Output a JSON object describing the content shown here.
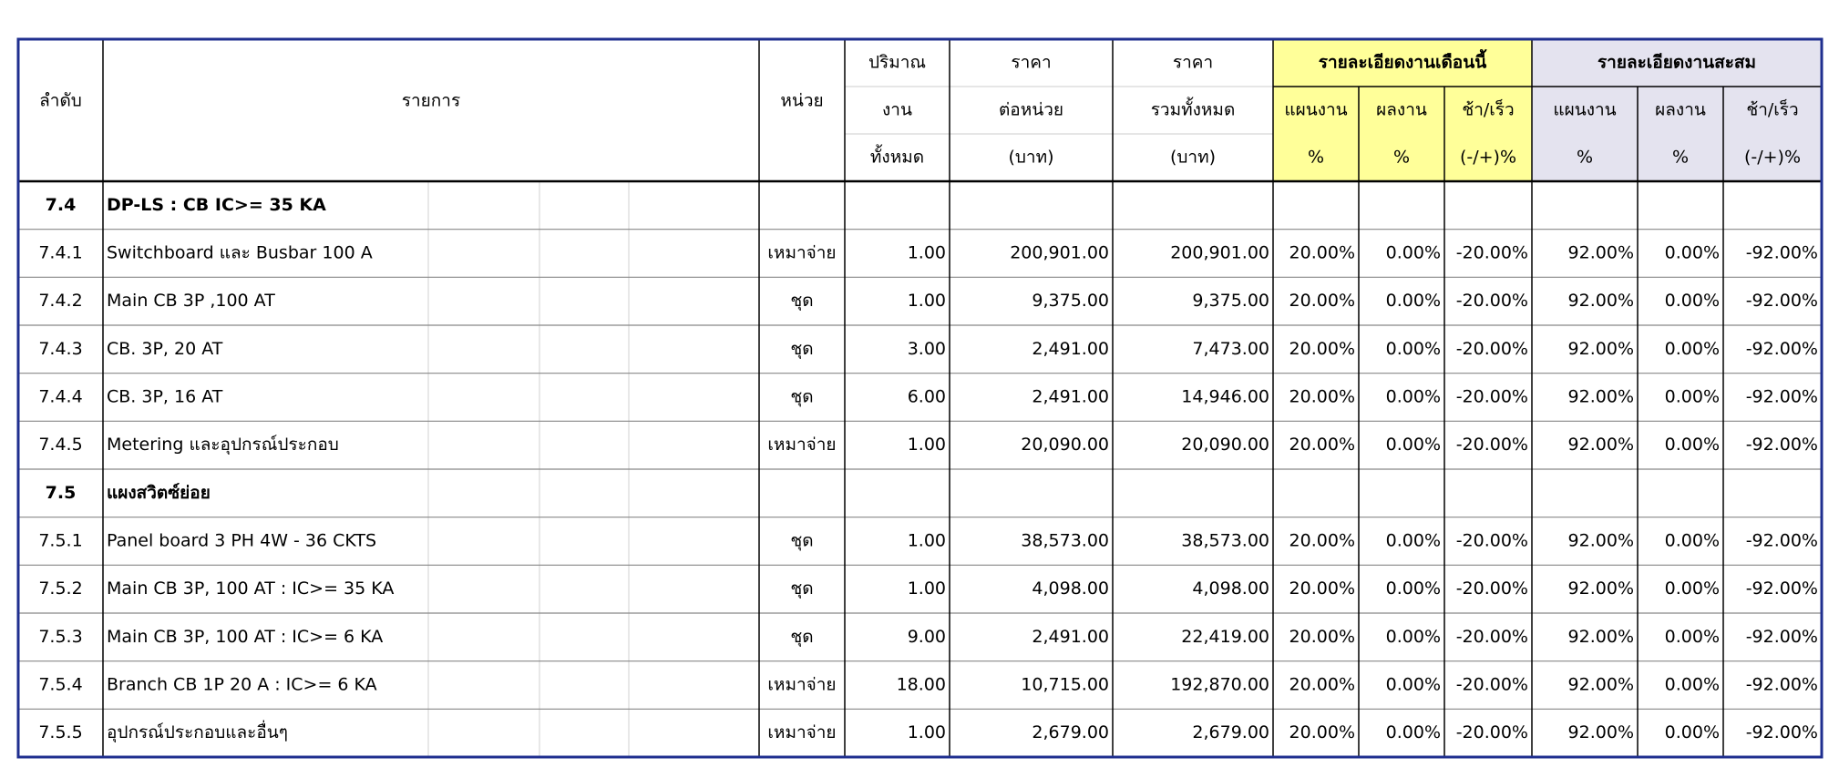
{
  "header": {
    "order": "ลำดับ",
    "item": "รายการ",
    "unit": "หน่วย",
    "qty": [
      "ปริมาณ",
      "งาน",
      "ทั้งหมด"
    ],
    "unit_price": [
      "ราคา",
      "ต่อหน่วย",
      "(บาท)"
    ],
    "total": [
      "ราคา",
      "รวมทั้งหมด",
      "(บาท)"
    ],
    "this_month": {
      "title": "รายละเอียดงานเดือนนี้",
      "cols": [
        [
          "แผนงาน",
          "%"
        ],
        [
          "ผลงาน",
          "%"
        ],
        [
          "ช้า/เร็ว",
          "(-/+)%"
        ]
      ]
    },
    "cumulative": {
      "title": "รายละเอียดงานสะสม",
      "cols": [
        [
          "แผนงาน",
          "%"
        ],
        [
          "ผลงาน",
          "%"
        ],
        [
          "ช้า/เร็ว",
          "(-/+)%"
        ]
      ]
    }
  },
  "rows": [
    [
      "7.4",
      "DP-LS : CB IC>= 35 KA"
    ],
    [
      "7.4.1",
      "Switchboard และ Busbar 100 A",
      "เหมาจ่าย",
      "1.00",
      "200,901.00",
      "200,901.00",
      "20.00%",
      "0.00%",
      "-20.00%",
      "92.00%",
      "0.00%",
      "-92.00%"
    ],
    [
      "7.4.2",
      "Main CB 3P ,100 AT",
      "ชุด",
      "1.00",
      "9,375.00",
      "9,375.00",
      "20.00%",
      "0.00%",
      "-20.00%",
      "92.00%",
      "0.00%",
      "-92.00%"
    ],
    [
      "7.4.3",
      "CB. 3P, 20 AT",
      "ชุด",
      "3.00",
      "2,491.00",
      "7,473.00",
      "20.00%",
      "0.00%",
      "-20.00%",
      "92.00%",
      "0.00%",
      "-92.00%"
    ],
    [
      "7.4.4",
      "CB. 3P, 16 AT",
      "ชุด",
      "6.00",
      "2,491.00",
      "14,946.00",
      "20.00%",
      "0.00%",
      "-20.00%",
      "92.00%",
      "0.00%",
      "-92.00%"
    ],
    [
      "7.4.5",
      "Metering และอุปกรณ์ประกอบ",
      "เหมาจ่าย",
      "1.00",
      "20,090.00",
      "20,090.00",
      "20.00%",
      "0.00%",
      "-20.00%",
      "92.00%",
      "0.00%",
      "-92.00%"
    ],
    [
      "7.5",
      "แผงสวิตซ์ย่อย"
    ],
    [
      "7.5.1",
      "Panel board 3 PH 4W - 36 CKTS",
      "ชุด",
      "1.00",
      "38,573.00",
      "38,573.00",
      "20.00%",
      "0.00%",
      "-20.00%",
      "92.00%",
      "0.00%",
      "-92.00%"
    ],
    [
      "7.5.2",
      "Main CB 3P,  100 AT : IC>= 35 KA",
      "ชุด",
      "1.00",
      "4,098.00",
      "4,098.00",
      "20.00%",
      "0.00%",
      "-20.00%",
      "92.00%",
      "0.00%",
      "-92.00%"
    ],
    [
      "7.5.3",
      " Main CB 3P,  100 AT : IC>=  6 KA",
      "ชุด",
      "9.00",
      "2,491.00",
      "22,419.00",
      "20.00%",
      "0.00%",
      "-20.00%",
      "92.00%",
      "0.00%",
      "-92.00%"
    ],
    [
      "7.5.4",
      "Branch CB 1P 20 A : IC>= 6 KA",
      "เหมาจ่าย",
      "18.00",
      "10,715.00",
      "192,870.00",
      "20.00%",
      "0.00%",
      "-20.00%",
      "92.00%",
      "0.00%",
      "-92.00%"
    ],
    [
      "7.5.5",
      "อุปกรณ์ประกอบและอื่นๆ",
      "เหมาจ่าย",
      "1.00",
      "2,679.00",
      "2,679.00",
      "20.00%",
      "0.00%",
      "-20.00%",
      "92.00%",
      "0.00%",
      "-92.00%"
    ]
  ]
}
